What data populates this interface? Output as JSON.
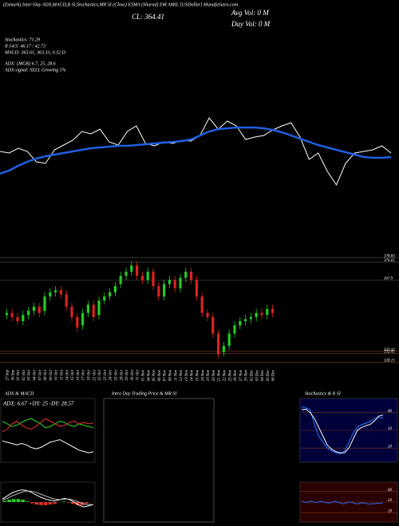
{
  "chart_data": [
    {
      "type": "line",
      "title": "(Esmark) Inter-Day ADX,MACD,B SI,Stochastics,MR SI (Close) ESMA (Sharad) EM AMIL [USDollar] MunafaSutra.com",
      "annotations": [
        "CL: 364.41",
        "Avg Vol: 0  M",
        "Day Vol: 0  M",
        "Stochastics: 71.29",
        "R 14/3: 46.17 / 42.73",
        "MACD: 363.61, 363.33, 0.32 D",
        "ADX: (MGR) 6.7, 25, 28.6",
        "ADX  signal: SELL Growing 5%"
      ],
      "ylim": [
        330,
        390
      ],
      "series": [
        {
          "color": "#ffffff",
          "values": [
            360,
            359,
            362,
            360,
            353.5,
            352.5,
            361,
            364,
            367,
            372.5,
            371,
            374,
            366,
            364,
            372.5,
            376,
            365,
            363.5,
            366,
            365,
            367,
            366.5,
            370,
            381,
            374,
            379,
            376,
            367.5,
            369,
            370,
            373.5,
            376,
            378,
            369,
            355,
            359,
            347.5,
            339,
            352.5,
            359,
            360,
            361,
            363.5,
            359
          ]
        },
        {
          "color": "#1f5fe0",
          "values": [
            346,
            348,
            351,
            353.5,
            355.5,
            357,
            358,
            359,
            360,
            361,
            362,
            362.5,
            363,
            363.5,
            363.5,
            364,
            364.5,
            365,
            365.5,
            366,
            366.5,
            367.5,
            370,
            372.5,
            374,
            374.5,
            375,
            375,
            375,
            374.5,
            373.5,
            372,
            370,
            368,
            366,
            364,
            362.5,
            361,
            359.5,
            358,
            356.5,
            356,
            356,
            356.5
          ]
        }
      ]
    },
    {
      "type": "candlestick",
      "categories": [
        "27 Sep",
        "30 Sep",
        "01 Oct",
        "02 Oct",
        "03 Oct",
        "04 Oct",
        "07 Oct",
        "08 Oct",
        "09 Oct",
        "10 Oct",
        "11 Oct",
        "14 Oct",
        "15 Oct",
        "16 Oct",
        "17 Oct",
        "18 Oct",
        "21 Oct",
        "22 Oct",
        "23 Oct",
        "24 Oct",
        "25 Oct",
        "28 Oct",
        "29 Oct",
        "30 Oct",
        "31 Oct",
        "01 Nov",
        "04 Nov",
        "05 Nov",
        "06 Nov",
        "07 Nov",
        "08 Nov",
        "11 Nov",
        "12 Nov",
        "13 Nov",
        "14 Nov",
        "15 Nov",
        "18 Nov",
        "19 Nov",
        "20 Nov",
        "21 Nov",
        "22 Nov",
        "25 Nov",
        "26 Nov",
        "27 Nov",
        "29 Nov",
        "02 Dec",
        "03 Dec",
        "04 Dec",
        "05 Dec",
        "06 Dec"
      ],
      "open": [
        351,
        352,
        350,
        348,
        351,
        353,
        355,
        353,
        360,
        362,
        363,
        361,
        355,
        350,
        346,
        352,
        356,
        351,
        358,
        360,
        362,
        366,
        370,
        372,
        375,
        370,
        368,
        372,
        365,
        360,
        366,
        368,
        364,
        369,
        372,
        368,
        360,
        352,
        350,
        342,
        333,
        336,
        342,
        346,
        348,
        349,
        350,
        352,
        351,
        354
      ],
      "high": [
        354,
        354,
        352,
        353,
        355,
        357,
        357,
        362,
        364,
        365,
        365,
        363,
        357,
        352,
        354,
        358,
        358,
        360,
        362,
        364,
        367,
        372,
        374,
        377,
        377,
        372,
        374,
        374,
        367,
        368,
        370,
        370,
        371,
        374,
        374,
        370,
        362,
        354,
        352,
        344,
        338,
        344,
        348,
        350,
        351,
        352,
        354,
        354,
        356,
        356
      ],
      "low": [
        349,
        348,
        346,
        346,
        349,
        351,
        350,
        351,
        358,
        360,
        359,
        353,
        348,
        343,
        344,
        350,
        348,
        349,
        356,
        358,
        360,
        364,
        368,
        370,
        368,
        366,
        366,
        363,
        358,
        358,
        364,
        362,
        362,
        367,
        366,
        358,
        350,
        348,
        340,
        330,
        331,
        334,
        340,
        344,
        346,
        347,
        348,
        349,
        349,
        350
      ],
      "close": [
        352,
        350,
        348,
        351,
        353,
        355,
        352,
        360,
        362,
        363,
        361,
        355,
        350,
        345,
        352,
        356,
        350,
        358,
        360,
        362,
        365,
        370,
        372,
        375,
        370,
        368,
        372,
        365,
        360,
        366,
        368,
        364,
        369,
        372,
        368,
        360,
        352,
        350,
        342,
        332,
        336,
        342,
        346,
        348,
        349,
        350,
        352,
        351,
        354,
        352
      ],
      "up_color": "#22cc22",
      "down_color": "#dd2222",
      "ylim": [
        326,
        382
      ],
      "yticks": [
        328.15,
        332.45,
        333.42,
        367.9,
        376.61,
        378.83
      ]
    },
    {
      "type": "line",
      "title": "ADX  & MACD",
      "annotations": [
        "ADX: 6.67  +DY: 25  -DY: 28.57"
      ],
      "ylim": [
        0,
        40
      ],
      "series": [
        {
          "color": "#22dd22",
          "values": [
            30,
            28,
            26,
            27,
            29,
            31,
            32,
            30,
            28,
            25,
            26,
            28,
            30,
            29,
            27,
            26,
            28,
            27,
            26,
            25
          ]
        },
        {
          "color": "#ee3333",
          "values": [
            22,
            24,
            28,
            30,
            27,
            25,
            24,
            26,
            29,
            32,
            30,
            28,
            26,
            27,
            29,
            30,
            28,
            29,
            28,
            28.6
          ]
        },
        {
          "color": "#ffffff",
          "values": [
            15,
            14,
            13,
            12,
            13,
            12,
            10,
            9,
            10,
            12,
            14,
            15,
            16,
            14,
            12,
            10,
            8,
            7,
            6,
            6.7
          ]
        }
      ]
    },
    {
      "type": "macd",
      "ylim": [
        -3,
        3
      ],
      "series": [
        {
          "color": "#ffffff",
          "values": [
            0.5,
            1,
            1.5,
            1.8,
            2,
            1.9,
            1.6,
            1.2,
            0.8,
            0.5,
            0.3,
            0.2,
            0.4,
            0.6,
            0.4,
            0,
            -0.5,
            -0.8,
            -0.6,
            -0.4
          ]
        },
        {
          "color": "#bbbbbb",
          "values": [
            0.3,
            0.6,
            1,
            1.3,
            1.6,
            1.8,
            1.8,
            1.6,
            1.3,
            1,
            0.7,
            0.5,
            0.4,
            0.5,
            0.5,
            0.3,
            0,
            -0.3,
            -0.4,
            -0.4
          ]
        }
      ],
      "histogram": {
        "up_color": "#22cc22",
        "down_color": "#dd3322",
        "values": [
          0.2,
          0.4,
          0.5,
          0.5,
          0.4,
          0.1,
          -0.2,
          -0.4,
          -0.5,
          -0.5,
          -0.4,
          -0.3,
          0,
          0.1,
          -0.1,
          -0.3,
          -0.5,
          -0.5,
          -0.2,
          0
        ]
      }
    },
    {
      "type": "empty",
      "title": "Intra  Day Trading Price  & MR                SI"
    },
    {
      "type": "line",
      "title": "Stochastics & R                SI",
      "ylim": [
        0,
        100
      ],
      "yticks": [
        20,
        50,
        80
      ],
      "series": [
        {
          "color": "#2a7bff",
          "values": [
            90,
            88,
            85,
            60,
            40,
            30,
            20,
            15,
            12,
            10,
            15,
            30,
            45,
            55,
            60,
            62,
            65,
            70,
            72,
            71
          ]
        },
        {
          "color": "#ffffff",
          "values": [
            85,
            86,
            80,
            70,
            55,
            40,
            25,
            18,
            14,
            12,
            12,
            20,
            35,
            50,
            55,
            58,
            60,
            66,
            74,
            76
          ]
        }
      ]
    },
    {
      "type": "line",
      "ylim": [
        0,
        100
      ],
      "yticks": [
        20,
        50,
        80
      ],
      "series": [
        {
          "color": "#2a6bff",
          "values": [
            52,
            50,
            48,
            53,
            51,
            49,
            50,
            52,
            50,
            48,
            47,
            50,
            52,
            49,
            47,
            45,
            48,
            50,
            49,
            46,
            45,
            47,
            48,
            46,
            44,
            46,
            45,
            47,
            46,
            48
          ]
        }
      ]
    }
  ]
}
